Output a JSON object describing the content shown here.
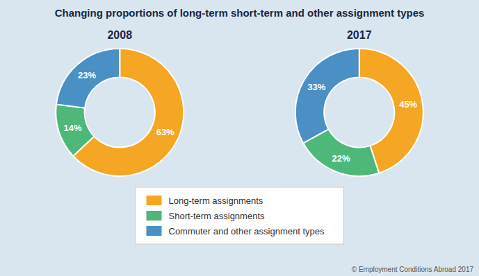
{
  "chart_data": {
    "type": "pie",
    "title": "Changing proportions of long-term short-term and other assignment types",
    "categories": [
      "Long-term assignments",
      "Short-term assignments",
      "Commuter and other assignment types"
    ],
    "colors": [
      "#f5a623",
      "#4db87a",
      "#4a90c4"
    ],
    "series": [
      {
        "name": "2008",
        "values": [
          63,
          14,
          23
        ],
        "value_labels": [
          "63%",
          "14%",
          "23%"
        ]
      },
      {
        "name": "2017",
        "values": [
          45,
          22,
          33
        ],
        "value_labels": [
          "45%",
          "22%",
          "33%"
        ]
      }
    ],
    "data_labels": true,
    "legend": "bottom",
    "annotations": [
      "© Employment Conditions Abroad 2017"
    ]
  }
}
